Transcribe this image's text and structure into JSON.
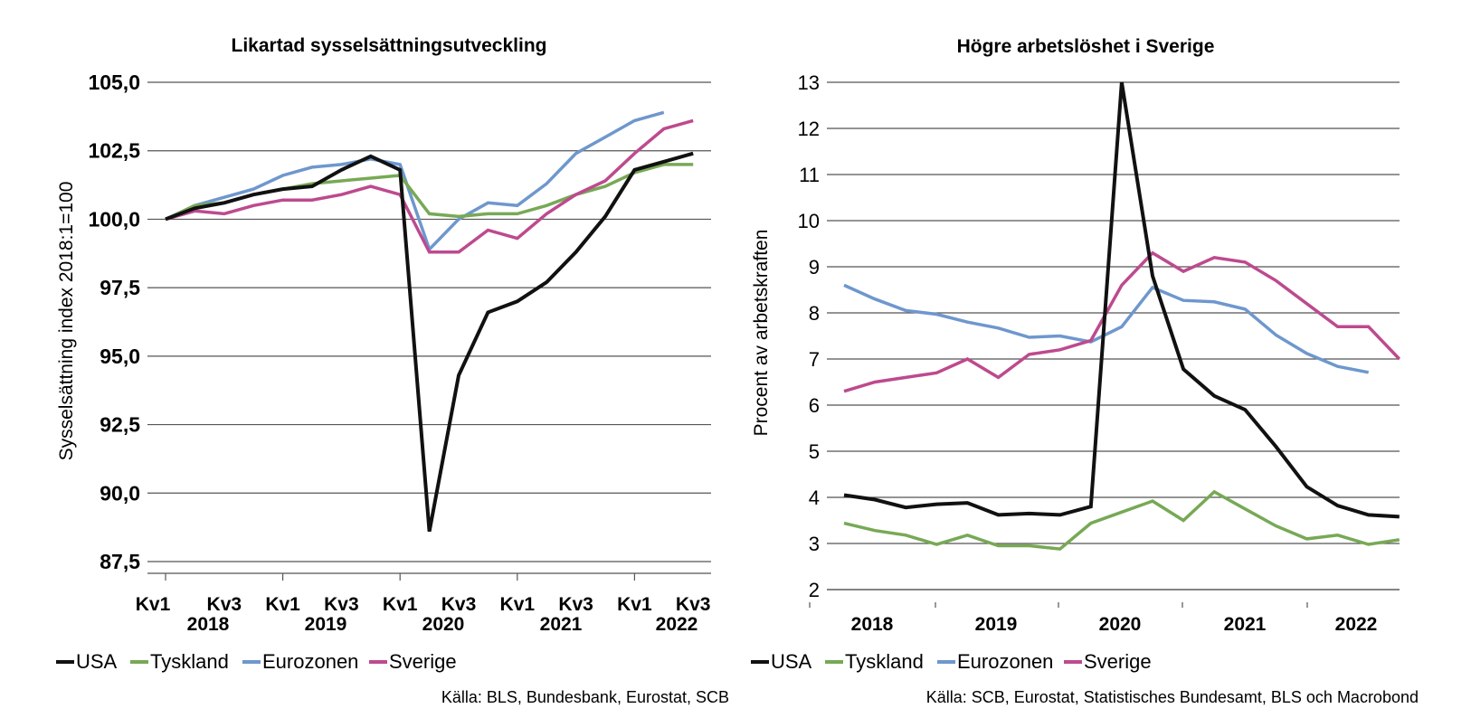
{
  "colors": {
    "USA": "#111111",
    "Tyskland": "#77a955",
    "Eurozonen": "#6e97cd",
    "Sverige": "#bd4a8e"
  },
  "chart_data": [
    {
      "type": "line",
      "title": "Likartad sysselsättningsutveckling",
      "ylabel": "Sysselsättning index 2018:1=100",
      "ylim": [
        87.5,
        105.0
      ],
      "yticks": [
        "105,0",
        "102,5",
        "100,0",
        "97,5",
        "95,0",
        "92,5",
        "90,0",
        "87,5"
      ],
      "ytick_values": [
        105.0,
        102.5,
        100.0,
        97.5,
        95.0,
        92.5,
        90.0,
        87.5
      ],
      "xtick_labels": [
        "Kv1",
        "Kv3",
        "Kv1",
        "Kv3",
        "Kv1",
        "Kv3",
        "Kv1",
        "Kv3",
        "Kv1",
        "Kv3"
      ],
      "xtick_indices": [
        0,
        2,
        4,
        6,
        8,
        10,
        12,
        14,
        16,
        18
      ],
      "year_labels": [
        "2018",
        "2019",
        "2020",
        "2021",
        "2022"
      ],
      "x": [
        "2018 Kv1",
        "2018 Kv2",
        "2018 Kv3",
        "2018 Kv4",
        "2019 Kv1",
        "2019 Kv2",
        "2019 Kv3",
        "2019 Kv4",
        "2020 Kv1",
        "2020 Kv2",
        "2020 Kv3",
        "2020 Kv4",
        "2021 Kv1",
        "2021 Kv2",
        "2021 Kv3",
        "2021 Kv4",
        "2022 Kv1",
        "2022 Kv2",
        "2022 Kv3"
      ],
      "series": [
        {
          "name": "USA",
          "values": [
            100.0,
            100.4,
            100.6,
            100.9,
            101.1,
            101.2,
            101.8,
            102.3,
            101.8,
            88.6,
            94.3,
            96.6,
            97.0,
            97.7,
            98.8,
            100.1,
            101.8,
            102.1,
            102.4
          ]
        },
        {
          "name": "Tyskland",
          "values": [
            100.0,
            100.5,
            100.6,
            100.9,
            101.1,
            101.3,
            101.4,
            101.5,
            101.6,
            100.2,
            100.1,
            100.2,
            100.2,
            100.5,
            100.9,
            101.2,
            101.7,
            102.0,
            102.0
          ]
        },
        {
          "name": "Eurozonen",
          "values": [
            100.0,
            100.5,
            100.8,
            101.1,
            101.6,
            101.9,
            102.0,
            102.2,
            102.0,
            98.9,
            100.0,
            100.6,
            100.5,
            101.3,
            102.4,
            103.0,
            103.6,
            103.9,
            null
          ]
        },
        {
          "name": "Sverige",
          "values": [
            100.0,
            100.3,
            100.2,
            100.5,
            100.7,
            100.7,
            100.9,
            101.2,
            100.9,
            98.8,
            98.8,
            99.6,
            99.3,
            100.2,
            100.9,
            101.4,
            102.4,
            103.3,
            103.6
          ]
        }
      ],
      "legend": [
        "USA",
        "Tyskland",
        "Eurozonen",
        "Sverige"
      ],
      "legend_position": "bottom",
      "grid": true,
      "source": "Källa: BLS, Bundesbank, Eurostat, SCB"
    },
    {
      "type": "line",
      "title": "Högre arbetslöshet i Sverige",
      "ylabel": "Procent av arbetskraften",
      "ylim": [
        2,
        13
      ],
      "yticks": [
        "13",
        "12",
        "11",
        "10",
        "9",
        "8",
        "7",
        "6",
        "5",
        "4",
        "3",
        "2"
      ],
      "ytick_values": [
        13,
        12,
        11,
        10,
        9,
        8,
        7,
        6,
        5,
        4,
        3,
        2
      ],
      "year_labels": [
        "2018",
        "2019",
        "2020",
        "2021",
        "2022"
      ],
      "x": [
        "2018 Kv1",
        "2018 Kv2",
        "2018 Kv3",
        "2018 Kv4",
        "2019 Kv1",
        "2019 Kv2",
        "2019 Kv3",
        "2019 Kv4",
        "2020 Kv1",
        "2020 Kv2",
        "2020 Kv3",
        "2020 Kv4",
        "2021 Kv1",
        "2021 Kv2",
        "2021 Kv3",
        "2021 Kv4",
        "2022 Kv1",
        "2022 Kv2",
        "2022 Kv3"
      ],
      "series": [
        {
          "name": "USA",
          "values": [
            4.05,
            3.95,
            3.78,
            3.85,
            3.88,
            3.62,
            3.65,
            3.62,
            3.8,
            13.0,
            8.8,
            6.78,
            6.2,
            5.9,
            5.1,
            4.23,
            3.82,
            3.62,
            3.58
          ]
        },
        {
          "name": "Tyskland",
          "values": [
            3.44,
            3.28,
            3.18,
            2.98,
            3.18,
            2.95,
            2.95,
            2.88,
            3.44,
            3.68,
            3.92,
            3.5,
            4.12,
            3.75,
            3.38,
            3.1,
            3.18,
            2.98,
            3.08
          ]
        },
        {
          "name": "Eurozonen",
          "values": [
            8.6,
            8.3,
            8.05,
            7.97,
            7.8,
            7.67,
            7.47,
            7.5,
            7.37,
            7.7,
            8.55,
            8.27,
            8.24,
            8.08,
            7.52,
            7.12,
            6.84,
            6.71,
            null
          ]
        },
        {
          "name": "Sverige",
          "values": [
            6.3,
            6.5,
            6.6,
            6.7,
            7.0,
            6.6,
            7.1,
            7.2,
            7.4,
            8.6,
            9.3,
            8.9,
            9.2,
            9.1,
            8.7,
            8.2,
            7.7,
            7.7,
            7.0
          ]
        }
      ],
      "legend": [
        "USA",
        "Tyskland",
        "Eurozonen",
        "Sverige"
      ],
      "legend_position": "bottom",
      "grid": true,
      "source": "Källa: SCB, Eurostat, Statistisches Bundesamt, BLS och Macrobond"
    }
  ]
}
